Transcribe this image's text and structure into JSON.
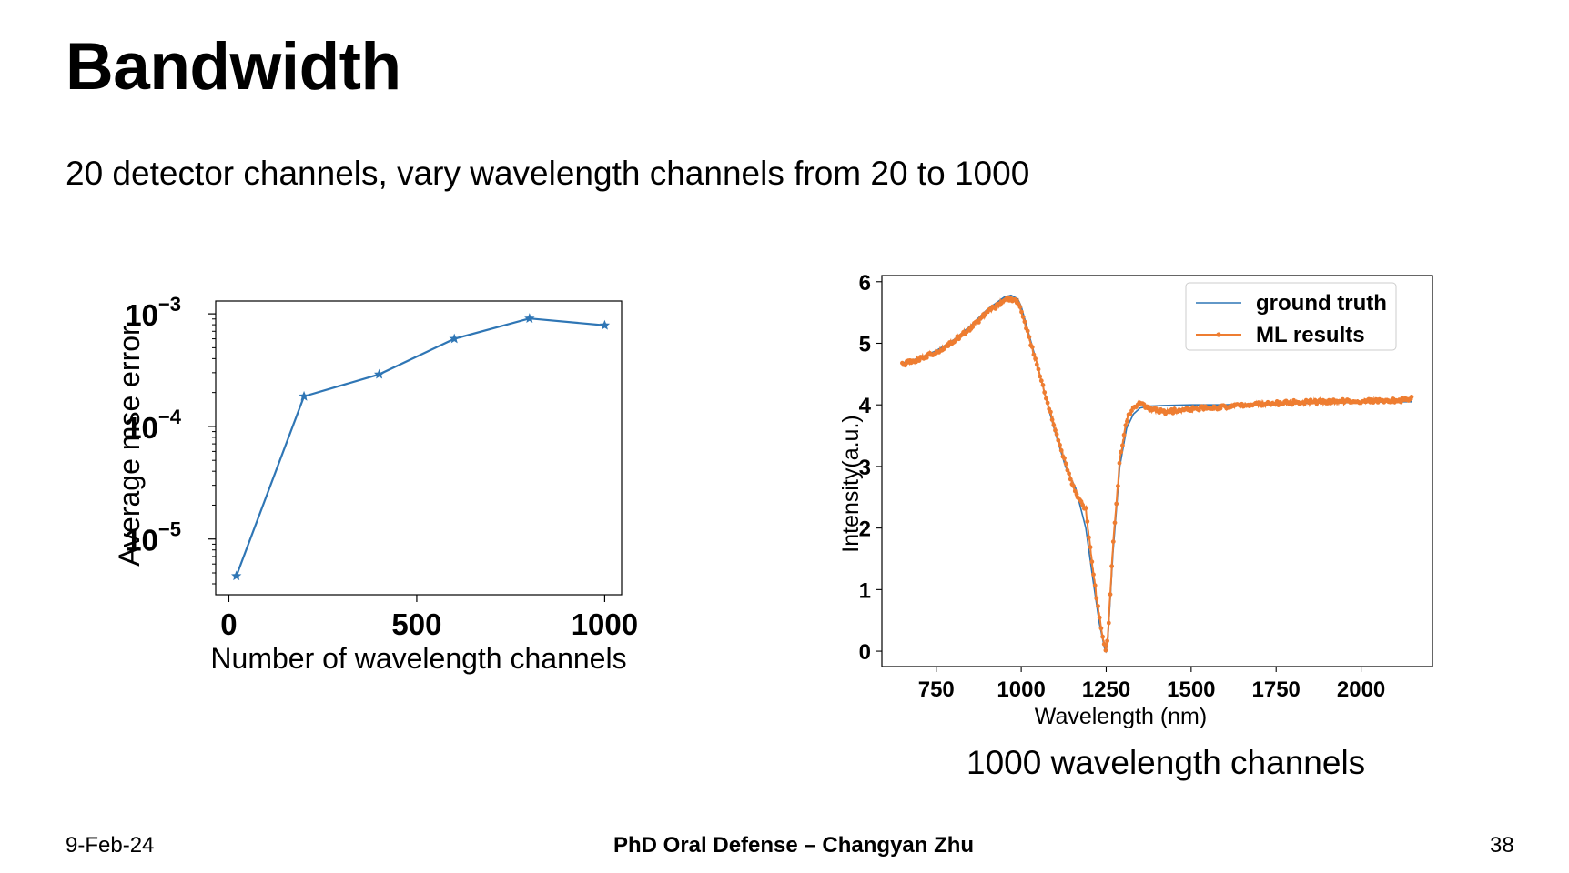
{
  "slide": {
    "title": "Bandwidth",
    "subtitle": "20 detector channels, vary wavelength channels from 20 to 1000",
    "caption": "1000 wavelength channels",
    "footer": {
      "date": "9-Feb-24",
      "center": "PhD Oral Defense – Changyan Zhu",
      "page": "38"
    }
  },
  "colors": {
    "blue": "#2f76b5",
    "orange": "#ee7d31"
  },
  "chart_data": [
    {
      "type": "line",
      "title": "",
      "xlabel": "Number of wavelength channels",
      "ylabel": "Average mse error",
      "yscale": "log",
      "xlim": [
        -35,
        1045
      ],
      "ylim": [
        3.2e-06,
        0.0013
      ],
      "xticks": [
        0,
        500,
        1000
      ],
      "xtick_labels": [
        "0",
        "500",
        "1000"
      ],
      "yticks": [
        1e-05,
        0.0001,
        0.001
      ],
      "ytick_base": "10",
      "ytick_exponents": [
        "−5",
        "−4",
        "−3"
      ],
      "marker": "star",
      "series": [
        {
          "name": "mse",
          "color": "#2f76b5",
          "x": [
            20,
            200,
            400,
            600,
            800,
            1000
          ],
          "y": [
            4.7e-06,
            0.000185,
            0.00029,
            0.0006,
            0.00091,
            0.00079
          ]
        }
      ]
    },
    {
      "type": "line",
      "title": "",
      "xlabel": "Wavelength (nm)",
      "ylabel": "Intensity(a.u.)",
      "xlim": [
        590,
        2210
      ],
      "ylim": [
        -0.25,
        6.1
      ],
      "xticks": [
        750,
        1000,
        1250,
        1500,
        1750,
        2000
      ],
      "xtick_labels": [
        "750",
        "1000",
        "1250",
        "1500",
        "1750",
        "2000"
      ],
      "yticks": [
        0,
        1,
        2,
        3,
        4,
        5,
        6
      ],
      "ytick_labels": [
        "0",
        "1",
        "2",
        "3",
        "4",
        "5",
        "6"
      ],
      "legend_position": "top-right",
      "legend": [
        "ground truth",
        "ML results"
      ],
      "series": [
        {
          "name": "ground truth",
          "color": "#2f76b5",
          "x": [
            650,
            700,
            750,
            800,
            850,
            900,
            950,
            970,
            990,
            1000,
            1020,
            1050,
            1080,
            1100,
            1130,
            1160,
            1190,
            1210,
            1230,
            1245,
            1250,
            1255,
            1270,
            1290,
            1310,
            1330,
            1350,
            1380,
            1420,
            1500,
            1600,
            1700,
            1800,
            1900,
            2000,
            2100,
            2150
          ],
          "y": [
            4.68,
            4.76,
            4.88,
            5.05,
            5.28,
            5.55,
            5.75,
            5.78,
            5.72,
            5.6,
            5.2,
            4.6,
            3.95,
            3.55,
            3.0,
            2.65,
            2.0,
            1.2,
            0.45,
            0.05,
            0.0,
            0.2,
            1.6,
            3.0,
            3.62,
            3.85,
            3.95,
            3.98,
            3.99,
            4.0,
            4.0,
            4.02,
            4.03,
            4.03,
            4.04,
            4.05,
            4.05
          ]
        },
        {
          "name": "ML results",
          "color": "#ee7d31",
          "x": [
            650,
            700,
            750,
            800,
            850,
            900,
            950,
            970,
            990,
            1000,
            1020,
            1050,
            1080,
            1100,
            1130,
            1160,
            1190,
            1210,
            1230,
            1245,
            1250,
            1255,
            1270,
            1290,
            1310,
            1330,
            1350,
            1380,
            1420,
            1500,
            1600,
            1700,
            1800,
            1900,
            2000,
            2100,
            2150
          ],
          "y": [
            4.65,
            4.74,
            4.86,
            5.03,
            5.25,
            5.5,
            5.7,
            5.72,
            5.68,
            5.52,
            5.15,
            4.58,
            3.98,
            3.6,
            3.05,
            2.55,
            2.3,
            1.35,
            0.55,
            0.08,
            0.02,
            0.25,
            1.7,
            3.1,
            3.75,
            3.95,
            4.02,
            3.92,
            3.88,
            3.93,
            3.97,
            4.01,
            4.04,
            4.05,
            4.06,
            4.07,
            4.1
          ]
        }
      ]
    }
  ]
}
